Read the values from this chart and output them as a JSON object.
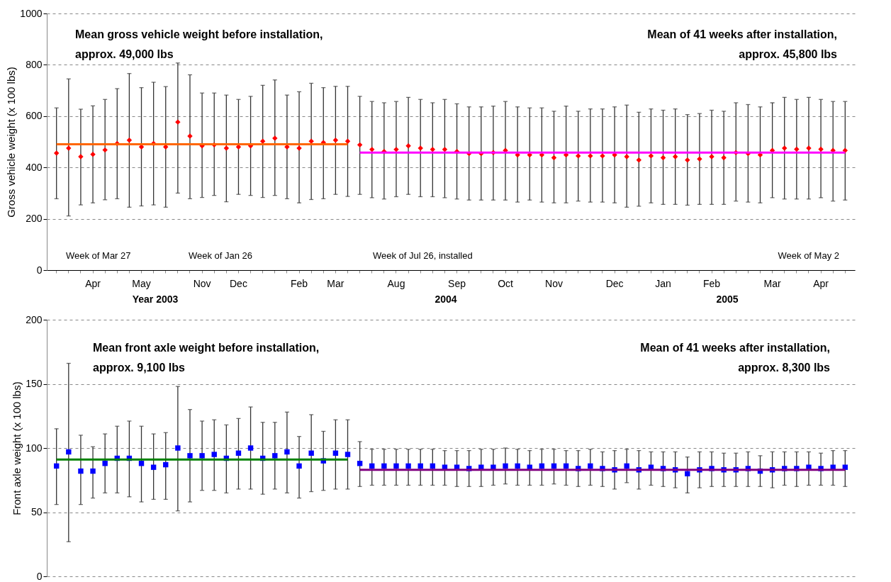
{
  "chart_data": [
    {
      "type": "scatter",
      "ylabel": "Gross vehicle weight (x 100 lbs)",
      "categories": [
        null,
        null,
        null,
        "Apr",
        null,
        null,
        null,
        "May",
        null,
        null,
        null,
        null,
        "Nov",
        null,
        null,
        "Dec",
        null,
        null,
        null,
        null,
        "Feb",
        null,
        null,
        "Mar",
        null,
        null,
        null,
        null,
        "Aug",
        null,
        null,
        null,
        null,
        "Sep",
        null,
        null,
        null,
        "Oct",
        null,
        null,
        null,
        "Nov",
        null,
        null,
        null,
        null,
        "Dec",
        null,
        null,
        null,
        "Jan",
        null,
        null,
        null,
        "Feb",
        null,
        null,
        null,
        null,
        "Mar",
        null,
        null,
        null,
        "Apr",
        null,
        null
      ],
      "ylim": [
        0,
        1000
      ],
      "yticks": [
        0,
        200,
        400,
        600,
        800,
        1000
      ],
      "grid": "y",
      "series": [
        {
          "type": "scatter",
          "color": "#ff0000",
          "marker": "diamond",
          "values": [
            456,
            475,
            442,
            451,
            468,
            493,
            506,
            480,
            493,
            480,
            577,
            522,
            484,
            488,
            475,
            480,
            484,
            502,
            514,
            480,
            475,
            502,
            497,
            506,
            502,
            488,
            470,
            462,
            470,
            484,
            475,
            470,
            470,
            462,
            454,
            454,
            458,
            466,
            449,
            449,
            449,
            438,
            449,
            445,
            445,
            445,
            449,
            442,
            429,
            445,
            438,
            442,
            429,
            433,
            442,
            438,
            458,
            454,
            449,
            466,
            475,
            471,
            475,
            471,
            466,
            466
          ],
          "errors": [
            [
              278,
              632
            ],
            [
              211,
              745
            ],
            [
              254,
              627
            ],
            [
              262,
              640
            ],
            [
              274,
              665
            ],
            [
              278,
              707
            ],
            [
              245,
              766
            ],
            [
              250,
              711
            ],
            [
              254,
              732
            ],
            [
              245,
              715
            ],
            [
              300,
              807
            ],
            [
              278,
              761
            ],
            [
              283,
              690
            ],
            [
              291,
              690
            ],
            [
              266,
              682
            ],
            [
              295,
              665
            ],
            [
              291,
              677
            ],
            [
              283,
              720
            ],
            [
              291,
              741
            ],
            [
              278,
              682
            ],
            [
              262,
              695
            ],
            [
              275,
              728
            ],
            [
              278,
              711
            ],
            [
              295,
              716
            ],
            [
              287,
              716
            ],
            [
              295,
              677
            ],
            [
              282,
              657
            ],
            [
              277,
              652
            ],
            [
              286,
              657
            ],
            [
              295,
              673
            ],
            [
              286,
              665
            ],
            [
              286,
              652
            ],
            [
              282,
              665
            ],
            [
              277,
              648
            ],
            [
              273,
              636
            ],
            [
              273,
              636
            ],
            [
              273,
              639
            ],
            [
              273,
              657
            ],
            [
              265,
              636
            ],
            [
              273,
              632
            ],
            [
              265,
              632
            ],
            [
              262,
              619
            ],
            [
              262,
              639
            ],
            [
              269,
              619
            ],
            [
              265,
              628
            ],
            [
              265,
              628
            ],
            [
              262,
              636
            ],
            [
              245,
              643
            ],
            [
              249,
              615
            ],
            [
              262,
              628
            ],
            [
              256,
              623
            ],
            [
              256,
              628
            ],
            [
              253,
              606
            ],
            [
              256,
              610
            ],
            [
              256,
              623
            ],
            [
              256,
              619
            ],
            [
              269,
              652
            ],
            [
              265,
              645
            ],
            [
              262,
              636
            ],
            [
              282,
              652
            ],
            [
              277,
              673
            ],
            [
              277,
              665
            ],
            [
              277,
              673
            ],
            [
              282,
              665
            ],
            [
              269,
              657
            ],
            [
              273,
              657
            ]
          ]
        },
        {
          "type": "line",
          "color": "#ff6600",
          "values": [
            490,
            490,
            490,
            490,
            490,
            490,
            490,
            490,
            490,
            490,
            490,
            490,
            490,
            490,
            490,
            490,
            490,
            490,
            490,
            490,
            490,
            490,
            490,
            490,
            490,
            null,
            null,
            null,
            null,
            null,
            null,
            null,
            null,
            null,
            null,
            null,
            null,
            null,
            null,
            null,
            null,
            null,
            null,
            null,
            null,
            null,
            null,
            null,
            null,
            null,
            null,
            null,
            null,
            null,
            null,
            null,
            null,
            null,
            null,
            null,
            null,
            null,
            null,
            null,
            null,
            null
          ]
        },
        {
          "type": "line",
          "color": "#ff00ff",
          "values": [
            null,
            null,
            null,
            null,
            null,
            null,
            null,
            null,
            null,
            null,
            null,
            null,
            null,
            null,
            null,
            null,
            null,
            null,
            null,
            null,
            null,
            null,
            null,
            null,
            null,
            458,
            458,
            458,
            458,
            458,
            458,
            458,
            458,
            458,
            458,
            458,
            458,
            458,
            458,
            458,
            458,
            458,
            458,
            458,
            458,
            458,
            458,
            458,
            458,
            458,
            458,
            458,
            458,
            458,
            458,
            458,
            458,
            458,
            458,
            458,
            458,
            458,
            458,
            458,
            458,
            458
          ]
        }
      ],
      "annotations": [
        "Mean gross vehicle weight before installation,\napprox. 49,000 lbs",
        "Mean of 41 weeks after installation,\napprox. 45,800 lbs",
        "Week of Mar 27",
        "Week of Jan 26",
        "Week of Jul 26, installed",
        "Week of May 2",
        "Year 2003",
        "2004",
        "2005"
      ]
    },
    {
      "type": "scatter",
      "ylabel": "Front axle weight (x 100 lbs)",
      "categories": [
        null,
        null,
        null,
        null,
        null,
        null,
        null,
        null,
        null,
        null,
        null,
        null,
        null,
        null,
        null,
        null,
        null,
        null,
        null,
        null,
        null,
        null,
        null,
        null,
        null,
        null,
        null,
        null,
        null,
        null,
        null,
        null,
        null,
        null,
        null,
        null,
        null,
        null,
        null,
        null,
        null,
        null,
        null,
        null,
        null,
        null,
        null,
        null,
        null,
        null,
        null,
        null,
        null,
        null,
        null,
        null,
        null,
        null,
        null,
        null,
        null,
        null,
        null,
        null,
        null,
        null
      ],
      "tick_labels": "y",
      "ylim": [
        0,
        200
      ],
      "yticks": [
        0,
        50,
        100,
        150,
        200
      ],
      "grid": "y",
      "series": [
        {
          "type": "scatter",
          "color": "#0000ff",
          "marker": "square",
          "values": [
            86,
            97,
            82,
            82,
            88,
            92,
            92,
            88,
            85,
            87,
            100,
            94,
            94,
            95,
            92,
            96,
            100,
            92,
            94,
            97,
            86,
            96,
            90,
            96,
            95,
            88,
            86,
            86,
            86,
            86,
            86,
            86,
            85,
            85,
            84,
            85,
            85,
            86,
            86,
            85,
            86,
            86,
            86,
            84,
            86,
            84,
            83,
            86,
            83,
            85,
            84,
            83,
            80,
            83,
            84,
            83,
            83,
            84,
            82,
            83,
            84,
            84,
            85,
            84,
            85,
            85
          ],
          "errors": [
            [
              56,
              115
            ],
            [
              27,
              166
            ],
            [
              56,
              110
            ],
            [
              61,
              101
            ],
            [
              65,
              111
            ],
            [
              65,
              117
            ],
            [
              62,
              121
            ],
            [
              58,
              117
            ],
            [
              60,
              111
            ],
            [
              60,
              112
            ],
            [
              51,
              148
            ],
            [
              58,
              130
            ],
            [
              67,
              121
            ],
            [
              67,
              122
            ],
            [
              65,
              118
            ],
            [
              68,
              123
            ],
            [
              68,
              132
            ],
            [
              64,
              120
            ],
            [
              68,
              120
            ],
            [
              65,
              128
            ],
            [
              61,
              109
            ],
            [
              66,
              126
            ],
            [
              67,
              113
            ],
            [
              68,
              122
            ],
            [
              68,
              122
            ],
            [
              70,
              105
            ],
            [
              71,
              99
            ],
            [
              71,
              99
            ],
            [
              71,
              99
            ],
            [
              71,
              99
            ],
            [
              71,
              99
            ],
            [
              71,
              99
            ],
            [
              71,
              98
            ],
            [
              70,
              98
            ],
            [
              70,
              98
            ],
            [
              70,
              99
            ],
            [
              71,
              99
            ],
            [
              72,
              100
            ],
            [
              71,
              99
            ],
            [
              71,
              98
            ],
            [
              71,
              99
            ],
            [
              72,
              99
            ],
            [
              71,
              98
            ],
            [
              70,
              98
            ],
            [
              71,
              99
            ],
            [
              70,
              97
            ],
            [
              68,
              98
            ],
            [
              73,
              99
            ],
            [
              68,
              98
            ],
            [
              71,
              97
            ],
            [
              70,
              97
            ],
            [
              69,
              97
            ],
            [
              65,
              93
            ],
            [
              69,
              97
            ],
            [
              70,
              97
            ],
            [
              70,
              96
            ],
            [
              70,
              96
            ],
            [
              70,
              97
            ],
            [
              70,
              94
            ],
            [
              69,
              97
            ],
            [
              71,
              97
            ],
            [
              70,
              97
            ],
            [
              71,
              97
            ],
            [
              71,
              96
            ],
            [
              71,
              98
            ],
            [
              70,
              98
            ]
          ]
        },
        {
          "type": "line",
          "color": "#008000",
          "values": [
            91,
            91,
            91,
            91,
            91,
            91,
            91,
            91,
            91,
            91,
            91,
            91,
            91,
            91,
            91,
            91,
            91,
            91,
            91,
            91,
            91,
            91,
            91,
            91,
            91,
            null,
            null,
            null,
            null,
            null,
            null,
            null,
            null,
            null,
            null,
            null,
            null,
            null,
            null,
            null,
            null,
            null,
            null,
            null,
            null,
            null,
            null,
            null,
            null,
            null,
            null,
            null,
            null,
            null,
            null,
            null,
            null,
            null,
            null,
            null,
            null,
            null,
            null,
            null,
            null,
            null
          ]
        },
        {
          "type": "line",
          "color": "#800080",
          "values": [
            null,
            null,
            null,
            null,
            null,
            null,
            null,
            null,
            null,
            null,
            null,
            null,
            null,
            null,
            null,
            null,
            null,
            null,
            null,
            null,
            null,
            null,
            null,
            null,
            null,
            83,
            83,
            83,
            83,
            83,
            83,
            83,
            83,
            83,
            83,
            83,
            83,
            83,
            83,
            83,
            83,
            83,
            83,
            83,
            83,
            83,
            83,
            83,
            83,
            83,
            83,
            83,
            83,
            83,
            83,
            83,
            83,
            83,
            83,
            83,
            83,
            83,
            83,
            83,
            83,
            83
          ]
        }
      ],
      "annotations": [
        "Mean front axle weight before installation,\napprox. 9,100 lbs",
        "Mean of 41 weeks after installation,\napprox. 8,300 lbs"
      ]
    }
  ]
}
